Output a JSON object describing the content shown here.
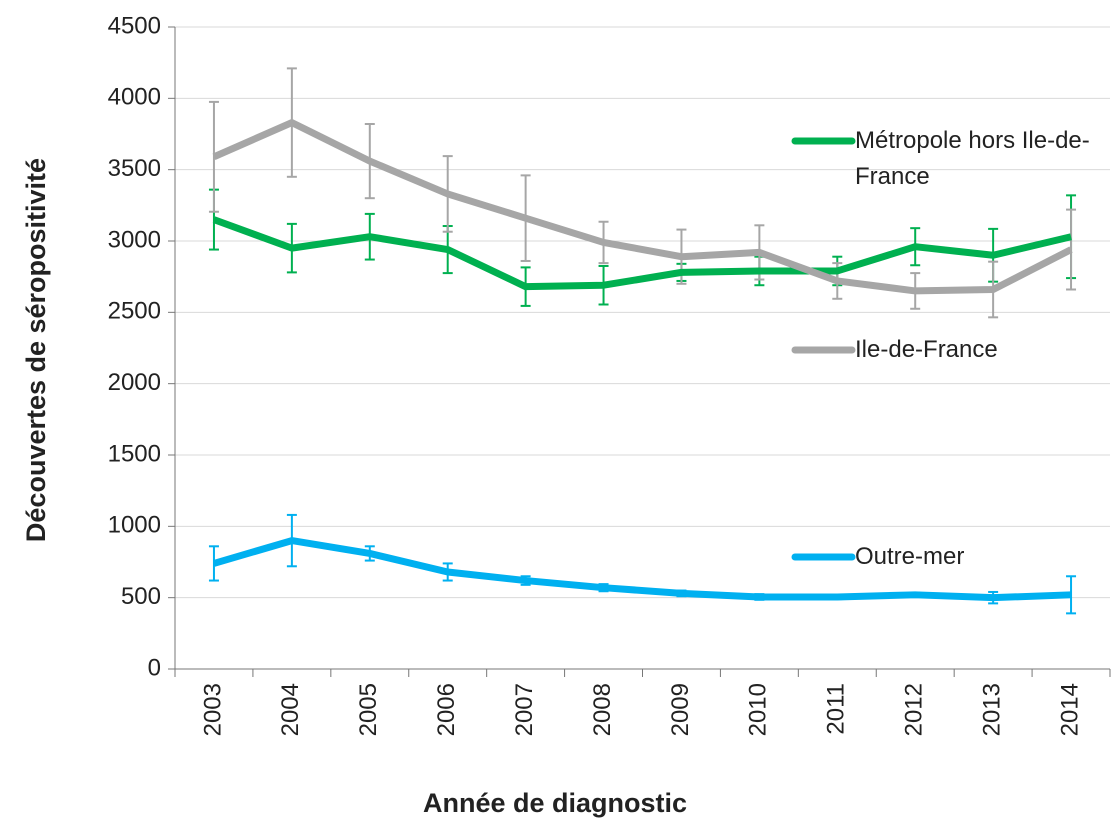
{
  "chart_data": {
    "type": "line",
    "x_label": "Année de diagnostic",
    "y_label": "Découvertes de séropositivité",
    "categories": [
      "2003",
      "2004",
      "2005",
      "2006",
      "2007",
      "2008",
      "2009",
      "2010",
      "2011",
      "2012",
      "2013",
      "2014"
    ],
    "series": [
      {
        "name": "Métropole hors Ile-de-France",
        "color": "#00b050",
        "values": [
          3150,
          2950,
          3030,
          2940,
          2680,
          2690,
          2780,
          2790,
          2790,
          2960,
          2900,
          3030
        ],
        "errors": [
          210,
          170,
          160,
          165,
          135,
          135,
          60,
          100,
          100,
          130,
          185,
          290
        ]
      },
      {
        "name": "Ile-de-France",
        "color": "#a6a6a6",
        "values": [
          3590,
          3830,
          3560,
          3330,
          3160,
          2990,
          2890,
          2920,
          2720,
          2650,
          2660,
          2940
        ],
        "errors": [
          385,
          380,
          260,
          265,
          300,
          145,
          190,
          190,
          125,
          125,
          195,
          280
        ]
      },
      {
        "name": "Outre-mer",
        "color": "#00b0f0",
        "values": [
          740,
          900,
          810,
          680,
          620,
          570,
          530,
          505,
          505,
          520,
          500,
          520
        ],
        "errors": [
          120,
          180,
          50,
          60,
          30,
          25,
          20,
          20,
          15,
          15,
          40,
          130
        ]
      }
    ],
    "ylim": [
      0,
      4500
    ],
    "yticks": [
      0,
      500,
      1000,
      1500,
      2000,
      2500,
      3000,
      3500,
      4000,
      4500
    ],
    "grid": true
  }
}
